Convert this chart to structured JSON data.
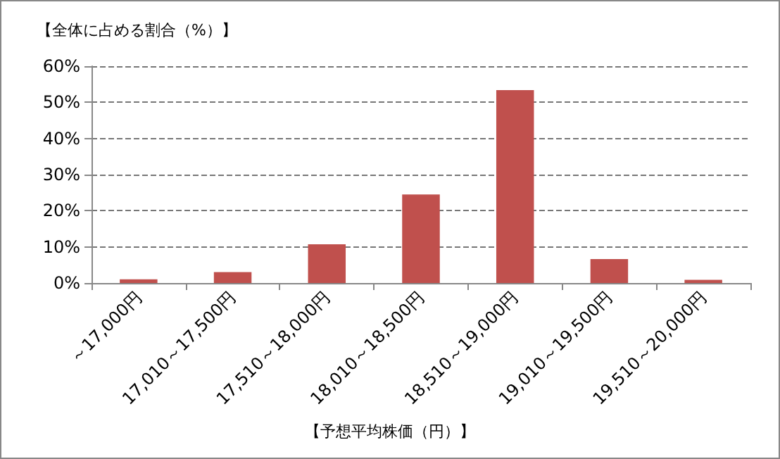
{
  "chart_data": {
    "type": "bar",
    "ylabel": "【全体に占める割合（%）】",
    "xlabel": "【予想平均株価（円）】",
    "categories": [
      "～17,000円",
      "17,010～17,500円",
      "17,510～18,000円",
      "18,010～18,500円",
      "18,510～19,000円",
      "19,010～19,500円",
      "19,510～20,000円"
    ],
    "values": [
      1,
      3,
      10.7,
      24.5,
      53.4,
      6.6,
      0.9
    ],
    "color": "#c0504d",
    "ylim": [
      0,
      60
    ],
    "yticks": [
      {
        "value": 0,
        "label": "0%"
      },
      {
        "value": 10,
        "label": "10%"
      },
      {
        "value": 20,
        "label": "20%"
      },
      {
        "value": 30,
        "label": "30%"
      },
      {
        "value": 40,
        "label": "40%"
      },
      {
        "value": 50,
        "label": "50%"
      },
      {
        "value": 60,
        "label": "60%"
      }
    ],
    "grid": "y"
  }
}
